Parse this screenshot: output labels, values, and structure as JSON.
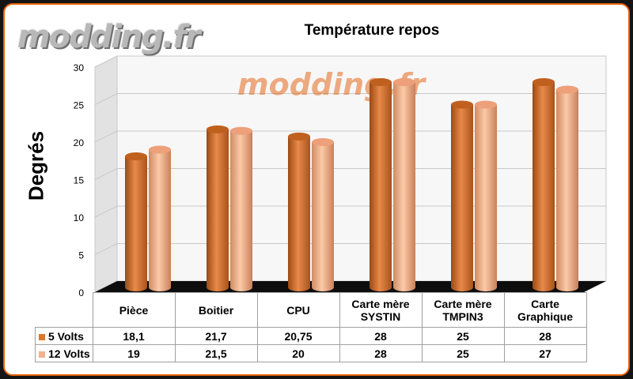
{
  "watermark": "modding.fr",
  "colors": {
    "accent_border": "#e8630a",
    "series_5v": "#d97830",
    "series_12v": "#f3b08c"
  },
  "chart_data": {
    "type": "bar",
    "title": "Température repos",
    "xlabel": "",
    "ylabel": "Degrés",
    "ylim": [
      0,
      30
    ],
    "yticks": [
      0,
      5,
      10,
      15,
      20,
      25,
      30
    ],
    "grid": true,
    "legend_placement": "data table below plot",
    "categories": [
      "Pièce",
      "Boitier",
      "CPU",
      "Carte mère SYSTIN",
      "Carte mère TMPIN3",
      "Carte Graphique"
    ],
    "category_lines": [
      [
        "Pièce"
      ],
      [
        "Boitier"
      ],
      [
        "CPU"
      ],
      [
        "Carte mère",
        "SYSTIN"
      ],
      [
        "Carte mère",
        "TMPIN3"
      ],
      [
        "Carte",
        "Graphique"
      ]
    ],
    "series": [
      {
        "name": "5 Volts",
        "color": "#d97830",
        "values": [
          18.1,
          21.7,
          20.75,
          28,
          25,
          28
        ],
        "labels": [
          "18,1",
          "21,7",
          "20,75",
          "28",
          "25",
          "28"
        ]
      },
      {
        "name": "12 Volts",
        "color": "#f3b08c",
        "values": [
          19,
          21.5,
          20,
          28,
          25,
          27
        ],
        "labels": [
          "19",
          "21,5",
          "20",
          "28",
          "25",
          "27"
        ]
      }
    ]
  }
}
